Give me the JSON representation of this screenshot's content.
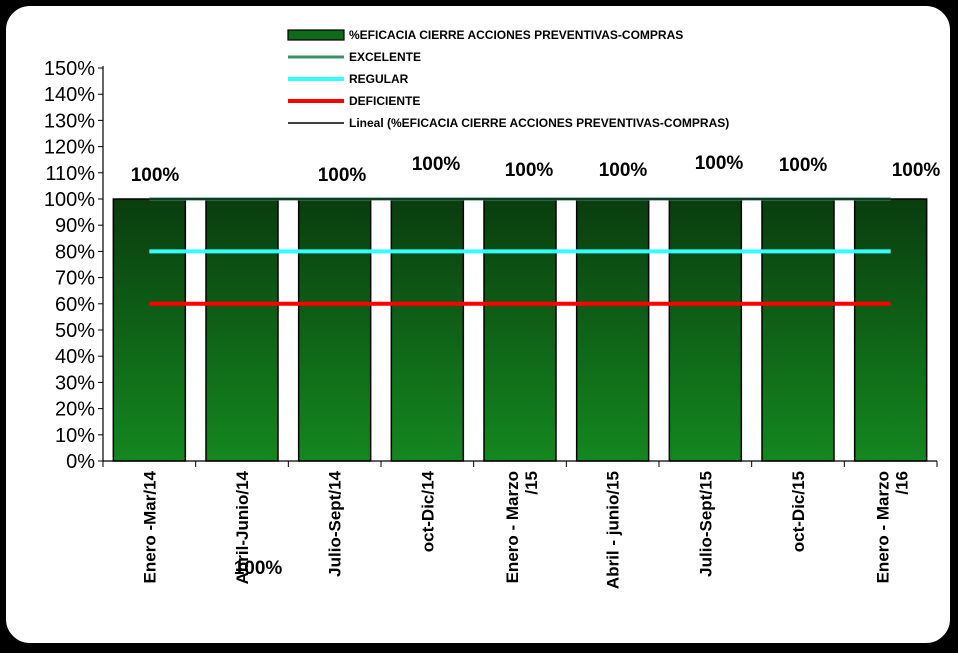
{
  "chart_data": {
    "type": "bar",
    "categories": [
      "Enero -Mar/14",
      "Abril-Junio/14",
      "Julio-Sept/14",
      "oct-Dic/14",
      "Enero - Marzo /15",
      "Abril - junio/15",
      "Julio-Sept/15",
      "oct-Dic/15",
      "Enero - Marzo /16"
    ],
    "series": [
      {
        "name": "%EFICACIA CIERRE ACCIONES PREVENTIVAS-COMPRAS",
        "type": "bar",
        "color": "#0f6b1a",
        "values": [
          100,
          100,
          100,
          100,
          100,
          100,
          100,
          100,
          100
        ]
      },
      {
        "name": "EXCELENTE",
        "type": "line",
        "color": "#3d8f6a",
        "values": [
          100,
          100,
          100,
          100,
          100,
          100,
          100,
          100,
          100
        ]
      },
      {
        "name": "REGULAR",
        "type": "line",
        "color": "#33ffff",
        "values": [
          80,
          80,
          80,
          80,
          80,
          80,
          80,
          80,
          80
        ]
      },
      {
        "name": "DEFICIENTE",
        "type": "line",
        "color": "#ff0000",
        "values": [
          60,
          60,
          60,
          60,
          60,
          60,
          60,
          60,
          60
        ]
      },
      {
        "name": "Lineal (%EFICACIA CIERRE ACCIONES PREVENTIVAS-COMPRAS)",
        "type": "line",
        "color": "#000000",
        "values": [
          100,
          100,
          100,
          100,
          100,
          100,
          100,
          100,
          100
        ]
      }
    ],
    "data_labels": [
      "100%",
      "100%",
      "100%",
      "100%",
      "100%",
      "100%",
      "100%",
      "100%",
      "100%"
    ],
    "y_ticks": [
      "0%",
      "10%",
      "20%",
      "30%",
      "40%",
      "50%",
      "60%",
      "70%",
      "80%",
      "90%",
      "100%",
      "110%",
      "120%",
      "130%",
      "140%",
      "150%"
    ],
    "ylim": [
      0,
      150
    ],
    "legend_position": "top",
    "grid": false
  }
}
